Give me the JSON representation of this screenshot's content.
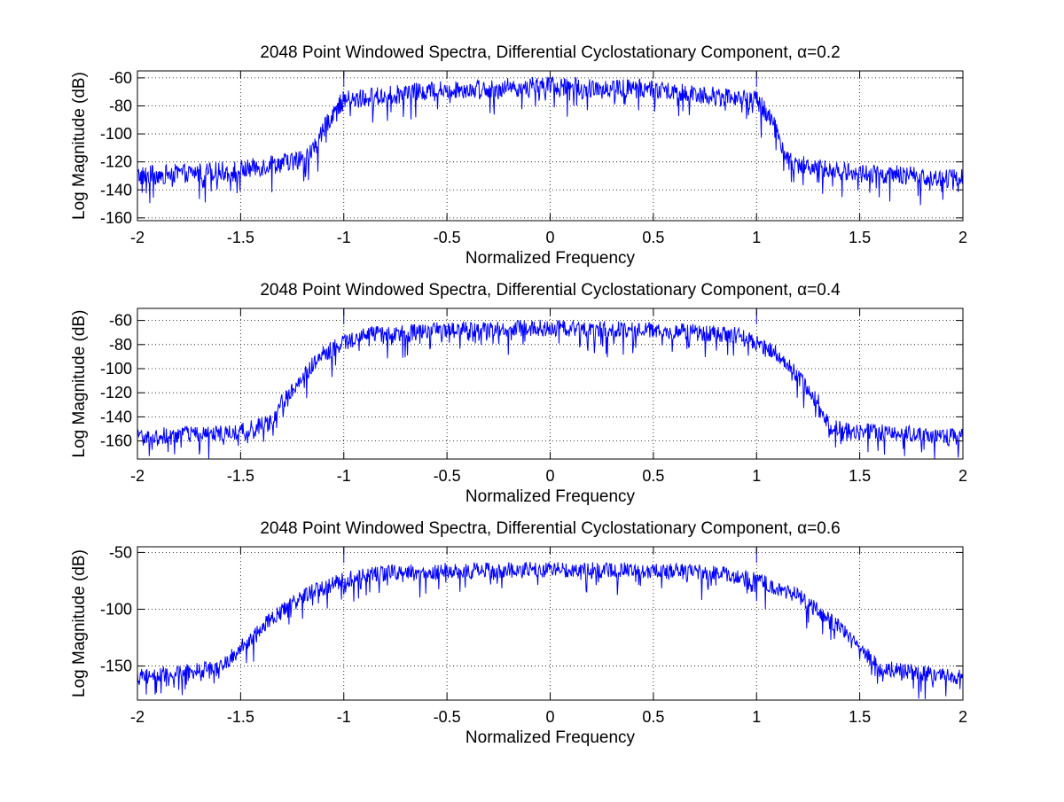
{
  "chart_data": [
    {
      "type": "line",
      "title": "2048 Point Windowed Spectra, Differential Cyclostationary Component, α=0.2",
      "xlabel": "Normalized Frequency",
      "ylabel": "Log Magnitude (dB)",
      "xlim": [
        -2,
        2
      ],
      "ylim": [
        -162,
        -55
      ],
      "xticks": [
        -2,
        -1.5,
        -1,
        -0.5,
        0,
        0.5,
        1,
        1.5,
        2
      ],
      "yticks": [
        -160,
        -140,
        -120,
        -100,
        -80,
        -60
      ],
      "grid": true,
      "line_color": "#0000ff",
      "series": [
        {
          "x": [
            -2.0,
            -1.5,
            -1.2,
            -1.15,
            -1.1,
            -1.05,
            -1.0,
            -0.5,
            0.0,
            0.5,
            1.0,
            1.05,
            1.1,
            1.15,
            1.2,
            1.5,
            2.0
          ],
          "values": [
            -130,
            -126,
            -118,
            -112,
            -98,
            -84,
            -76,
            -68,
            -66,
            -68,
            -76,
            -84,
            -98,
            -118,
            -122,
            -128,
            -132
          ]
        }
      ]
    },
    {
      "type": "line",
      "title": "2048 Point Windowed Spectra, Differential Cyclostationary Component, α=0.4",
      "xlabel": "Normalized Frequency",
      "ylabel": "Log Magnitude (dB)",
      "xlim": [
        -2,
        2
      ],
      "ylim": [
        -175,
        -50
      ],
      "xticks": [
        -2,
        -1.5,
        -1,
        -0.5,
        0,
        0.5,
        1,
        1.5,
        2
      ],
      "yticks": [
        -160,
        -140,
        -120,
        -100,
        -80,
        -60
      ],
      "grid": true,
      "line_color": "#0000ff",
      "series": [
        {
          "x": [
            -2.0,
            -1.5,
            -1.35,
            -1.3,
            -1.2,
            -1.1,
            -1.0,
            -0.9,
            -0.5,
            0.0,
            0.5,
            0.9,
            1.0,
            1.1,
            1.2,
            1.3,
            1.35,
            1.5,
            2.0
          ],
          "values": [
            -157,
            -152,
            -145,
            -128,
            -106,
            -88,
            -78,
            -72,
            -68,
            -66,
            -68,
            -72,
            -78,
            -88,
            -106,
            -128,
            -148,
            -152,
            -157
          ]
        }
      ]
    },
    {
      "type": "line",
      "title": "2048 Point Windowed Spectra, Differential Cyclostationary Component, α=0.6",
      "xlabel": "Normalized Frequency",
      "ylabel": "Log Magnitude (dB)",
      "xlim": [
        -2,
        2
      ],
      "ylim": [
        -180,
        -45
      ],
      "xticks": [
        -2,
        -1.5,
        -1,
        -0.5,
        0,
        0.5,
        1,
        1.5,
        2
      ],
      "yticks": [
        -150,
        -100,
        -50
      ],
      "grid": true,
      "line_color": "#0000ff",
      "series": [
        {
          "x": [
            -2.0,
            -1.6,
            -1.55,
            -1.4,
            -1.2,
            -1.0,
            -0.8,
            -0.5,
            0.0,
            0.5,
            0.8,
            1.0,
            1.2,
            1.4,
            1.55,
            1.6,
            2.0
          ],
          "values": [
            -160,
            -152,
            -143,
            -116,
            -88,
            -74,
            -68,
            -66,
            -65,
            -66,
            -68,
            -74,
            -88,
            -116,
            -143,
            -152,
            -160
          ]
        }
      ]
    }
  ]
}
